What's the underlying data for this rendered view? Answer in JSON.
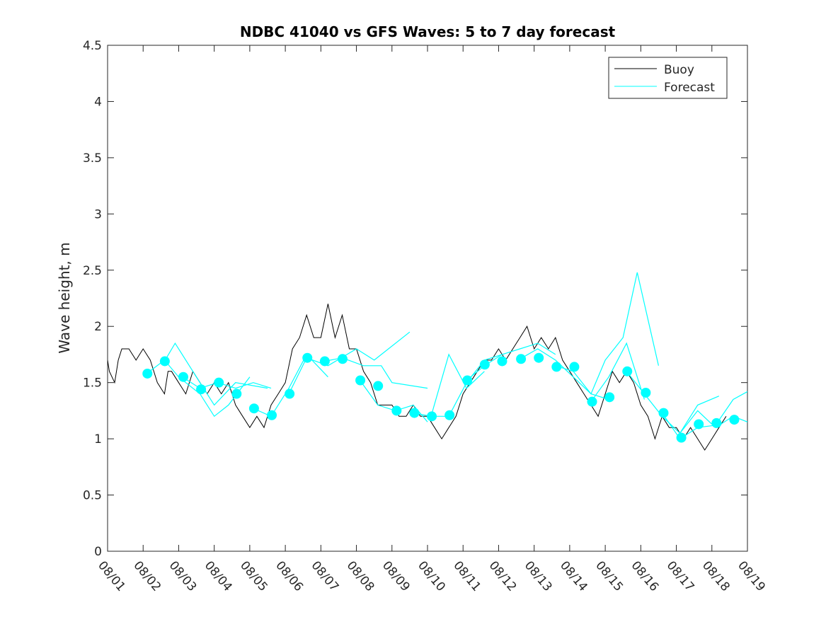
{
  "chart_data": {
    "type": "line",
    "title": "NDBC 41040 vs GFS Waves: 5 to 7 day forecast",
    "xlabel": "",
    "ylabel": "Wave height, m",
    "xlim": [
      0,
      18
    ],
    "ylim": [
      0,
      4.5
    ],
    "x_unit": "days since 08/01",
    "x_tick_labels": [
      "08/01",
      "08/02",
      "08/03",
      "08/04",
      "08/05",
      "08/06",
      "08/07",
      "08/08",
      "08/09",
      "08/10",
      "08/11",
      "08/12",
      "08/13",
      "08/14",
      "08/15",
      "08/16",
      "08/17",
      "08/18",
      "08/19"
    ],
    "y_ticks": [
      0,
      0.5,
      1,
      1.5,
      2,
      2.5,
      3,
      3.5,
      4,
      4.5
    ],
    "y_tick_labels": [
      "0",
      "0.5",
      "1",
      "1.5",
      "2",
      "2.5",
      "3",
      "3.5",
      "4",
      "4.5"
    ],
    "grid": false,
    "legend": {
      "placement": "top-right",
      "entries": [
        {
          "label": "Buoy",
          "color": "#000000"
        },
        {
          "label": "Forecast",
          "color": "#00FFFF"
        }
      ]
    },
    "colors": {
      "buoy": "#000000",
      "forecast": "#00FFFF"
    },
    "series": [
      {
        "name": "Buoy",
        "points": [
          [
            0,
            1.7
          ],
          [
            0.05,
            1.6
          ],
          [
            0.2,
            1.5
          ],
          [
            0.3,
            1.7
          ],
          [
            0.4,
            1.8
          ],
          [
            0.6,
            1.8
          ],
          [
            0.8,
            1.7
          ],
          [
            1.0,
            1.8
          ],
          [
            1.2,
            1.7
          ],
          [
            1.4,
            1.5
          ],
          [
            1.6,
            1.4
          ],
          [
            1.7,
            1.6
          ],
          [
            1.8,
            1.6
          ],
          [
            2.0,
            1.5
          ],
          [
            2.2,
            1.4
          ],
          [
            2.4,
            1.6
          ],
          [
            2.6,
            1.5
          ],
          [
            2.8,
            1.4
          ],
          [
            3.0,
            1.5
          ],
          [
            3.2,
            1.4
          ],
          [
            3.4,
            1.5
          ],
          [
            3.6,
            1.3
          ],
          [
            3.8,
            1.2
          ],
          [
            4.0,
            1.1
          ],
          [
            4.2,
            1.2
          ],
          [
            4.4,
            1.1
          ],
          [
            4.6,
            1.3
          ],
          [
            4.8,
            1.4
          ],
          [
            5.0,
            1.5
          ],
          [
            5.2,
            1.8
          ],
          [
            5.4,
            1.9
          ],
          [
            5.6,
            2.1
          ],
          [
            5.8,
            1.9
          ],
          [
            6.0,
            1.9
          ],
          [
            6.2,
            2.2
          ],
          [
            6.4,
            1.9
          ],
          [
            6.6,
            2.1
          ],
          [
            6.8,
            1.8
          ],
          [
            7.0,
            1.8
          ],
          [
            7.2,
            1.6
          ],
          [
            7.4,
            1.5
          ],
          [
            7.6,
            1.3
          ],
          [
            7.8,
            1.3
          ],
          [
            8.0,
            1.3
          ],
          [
            8.2,
            1.2
          ],
          [
            8.4,
            1.2
          ],
          [
            8.6,
            1.3
          ],
          [
            8.8,
            1.2
          ],
          [
            9.0,
            1.2
          ],
          [
            9.2,
            1.1
          ],
          [
            9.4,
            1.0
          ],
          [
            9.6,
            1.1
          ],
          [
            9.8,
            1.2
          ],
          [
            10.0,
            1.4
          ],
          [
            10.2,
            1.5
          ],
          [
            10.4,
            1.6
          ],
          [
            10.6,
            1.7
          ],
          [
            10.8,
            1.7
          ],
          [
            11.0,
            1.8
          ],
          [
            11.2,
            1.7
          ],
          [
            11.4,
            1.8
          ],
          [
            11.6,
            1.9
          ],
          [
            11.8,
            2.0
          ],
          [
            12.0,
            1.8
          ],
          [
            12.2,
            1.9
          ],
          [
            12.4,
            1.8
          ],
          [
            12.6,
            1.9
          ],
          [
            12.8,
            1.7
          ],
          [
            13.0,
            1.6
          ],
          [
            13.2,
            1.5
          ],
          [
            13.4,
            1.4
          ],
          [
            13.6,
            1.3
          ],
          [
            13.8,
            1.2
          ],
          [
            14.0,
            1.4
          ],
          [
            14.2,
            1.6
          ],
          [
            14.4,
            1.5
          ],
          [
            14.6,
            1.6
          ],
          [
            14.8,
            1.5
          ],
          [
            15.0,
            1.3
          ],
          [
            15.2,
            1.2
          ],
          [
            15.4,
            1.0
          ],
          [
            15.6,
            1.2
          ],
          [
            15.8,
            1.1
          ],
          [
            16.0,
            1.1
          ],
          [
            16.2,
            1.0
          ],
          [
            16.4,
            1.1
          ],
          [
            16.6,
            1.0
          ],
          [
            16.8,
            0.9
          ],
          [
            17.0,
            1.0
          ],
          [
            17.2,
            1.1
          ],
          [
            17.4,
            1.2
          ]
        ]
      },
      {
        "name": "Forecast",
        "runs": [
          [
            [
              1.1,
              1.58
            ],
            [
              1.6,
              1.7
            ],
            [
              2.0,
              1.55
            ],
            [
              2.6,
              1.4
            ],
            [
              3.0,
              1.2
            ],
            [
              3.4,
              1.3
            ],
            [
              4.0,
              1.55
            ]
          ],
          [
            [
              1.6,
              1.69
            ],
            [
              1.9,
              1.85
            ],
            [
              2.4,
              1.6
            ],
            [
              3.0,
              1.3
            ],
            [
              3.6,
              1.5
            ],
            [
              4.5,
              1.45
            ]
          ],
          [
            [
              2.1,
              1.55
            ],
            [
              2.6,
              1.45
            ],
            [
              3.1,
              1.5
            ],
            [
              3.6,
              1.45
            ],
            [
              4.1,
              1.5
            ],
            [
              4.6,
              1.45
            ]
          ],
          [
            [
              4.1,
              1.27
            ],
            [
              4.6,
              1.2
            ],
            [
              5.1,
              1.45
            ],
            [
              5.6,
              1.75
            ],
            [
              6.2,
              1.55
            ]
          ],
          [
            [
              5.1,
              1.4
            ],
            [
              5.6,
              1.72
            ],
            [
              6.2,
              1.65
            ],
            [
              7.0,
              1.8
            ],
            [
              7.5,
              1.7
            ],
            [
              8.5,
              1.95
            ]
          ],
          [
            [
              6.1,
              1.69
            ],
            [
              6.6,
              1.72
            ],
            [
              7.2,
              1.65
            ],
            [
              7.7,
              1.65
            ],
            [
              8.0,
              1.5
            ],
            [
              9.0,
              1.45
            ]
          ],
          [
            [
              7.1,
              1.52
            ],
            [
              7.6,
              1.3
            ],
            [
              8.1,
              1.25
            ],
            [
              8.6,
              1.3
            ],
            [
              9.0,
              1.15
            ]
          ],
          [
            [
              8.6,
              1.23
            ],
            [
              9.1,
              1.2
            ],
            [
              9.6,
              1.75
            ],
            [
              10.1,
              1.45
            ],
            [
              10.6,
              1.6
            ]
          ],
          [
            [
              9.1,
              1.2
            ],
            [
              9.6,
              1.2
            ],
            [
              10.1,
              1.5
            ],
            [
              10.6,
              1.7
            ],
            [
              11.1,
              1.75
            ]
          ],
          [
            [
              10.1,
              1.52
            ],
            [
              10.6,
              1.65
            ],
            [
              11.1,
              1.75
            ],
            [
              11.6,
              1.8
            ],
            [
              12.1,
              1.85
            ],
            [
              12.6,
              1.75
            ]
          ],
          [
            [
              11.6,
              1.71
            ],
            [
              12.1,
              1.8
            ],
            [
              12.6,
              1.7
            ],
            [
              13.1,
              1.55
            ],
            [
              13.6,
              1.4
            ],
            [
              14.1,
              1.35
            ]
          ],
          [
            [
              12.6,
              1.65
            ],
            [
              13.1,
              1.6
            ],
            [
              13.6,
              1.4
            ],
            [
              14.0,
              1.7
            ],
            [
              14.5,
              1.9
            ],
            [
              14.9,
              2.48
            ],
            [
              15.5,
              1.65
            ]
          ],
          [
            [
              13.6,
              1.33
            ],
            [
              14.1,
              1.55
            ],
            [
              14.6,
              1.85
            ],
            [
              15.1,
              1.35
            ]
          ],
          [
            [
              14.6,
              1.6
            ],
            [
              15.1,
              1.4
            ],
            [
              15.6,
              1.2
            ],
            [
              16.1,
              1.05
            ],
            [
              16.6,
              1.3
            ],
            [
              17.2,
              1.38
            ]
          ],
          [
            [
              15.6,
              1.23
            ],
            [
              16.1,
              1.0
            ],
            [
              16.6,
              1.1
            ],
            [
              17.1,
              1.12
            ],
            [
              17.6,
              1.35
            ],
            [
              18.0,
              1.42
            ]
          ],
          [
            [
              16.1,
              1.05
            ],
            [
              16.6,
              1.25
            ],
            [
              17.1,
              1.1
            ],
            [
              17.6,
              1.2
            ],
            [
              18.0,
              1.15
            ]
          ]
        ]
      },
      {
        "name": "Forecast markers",
        "points": [
          [
            1.12,
            1.58
          ],
          [
            1.61,
            1.69
          ],
          [
            2.13,
            1.55
          ],
          [
            2.63,
            1.44
          ],
          [
            3.13,
            1.5
          ],
          [
            3.63,
            1.4
          ],
          [
            4.12,
            1.27
          ],
          [
            4.62,
            1.21
          ],
          [
            5.12,
            1.4
          ],
          [
            5.62,
            1.72
          ],
          [
            6.11,
            1.69
          ],
          [
            6.61,
            1.71
          ],
          [
            7.11,
            1.52
          ],
          [
            7.61,
            1.47
          ],
          [
            8.13,
            1.25
          ],
          [
            8.63,
            1.23
          ],
          [
            9.12,
            1.2
          ],
          [
            9.62,
            1.21
          ],
          [
            10.12,
            1.52
          ],
          [
            10.61,
            1.66
          ],
          [
            11.1,
            1.69
          ],
          [
            11.63,
            1.71
          ],
          [
            12.13,
            1.72
          ],
          [
            12.63,
            1.64
          ],
          [
            13.13,
            1.64
          ],
          [
            13.63,
            1.33
          ],
          [
            14.12,
            1.37
          ],
          [
            14.62,
            1.6
          ],
          [
            15.14,
            1.41
          ],
          [
            15.64,
            1.23
          ],
          [
            16.14,
            1.01
          ],
          [
            16.63,
            1.13
          ],
          [
            17.13,
            1.14
          ],
          [
            17.63,
            1.17
          ]
        ]
      }
    ]
  }
}
